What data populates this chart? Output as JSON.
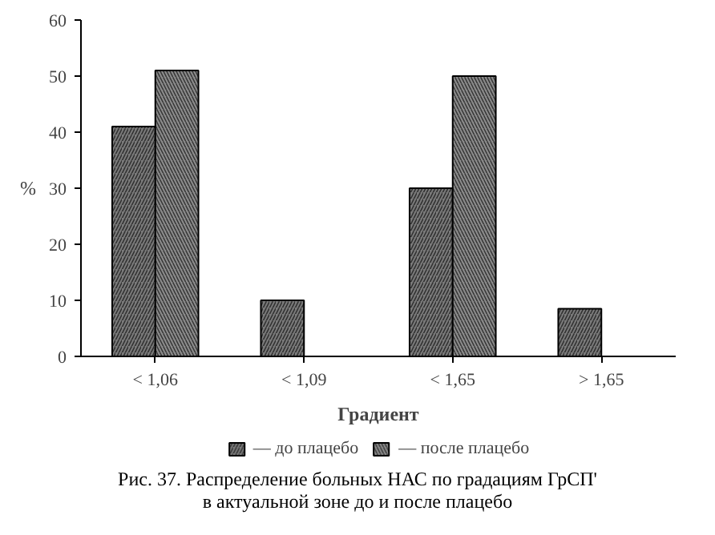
{
  "chart_data": {
    "type": "bar",
    "categories": [
      "< 1,06",
      "< 1,09",
      "< 1,65",
      "> 1,65"
    ],
    "series": [
      {
        "name": "— до плацебо",
        "color": "#7a7a7a",
        "values": [
          41,
          10,
          30,
          8.5
        ]
      },
      {
        "name": "— после плацебо",
        "color": "#8c8c8c",
        "values": [
          51,
          null,
          50,
          null
        ]
      }
    ],
    "xlabel": "Градиент",
    "ylabel": "%",
    "ylim": [
      0,
      60
    ],
    "yticks": [
      0,
      10,
      20,
      30,
      40,
      50,
      60
    ],
    "grid": false,
    "legend": "bottom",
    "annotations": [
      "Рис. 37. Распределение больных НАС по градациям ГрСП' в актуальной зоне до и после плацебо"
    ]
  }
}
